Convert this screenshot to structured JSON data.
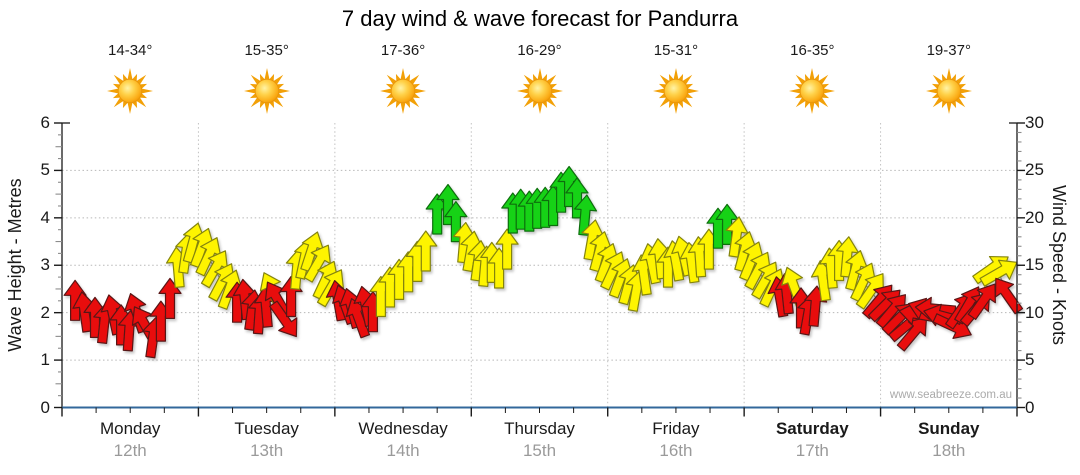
{
  "title": "7 day wind & wave forecast for Pandurra",
  "watermark": "www.seabreeze.com.au",
  "axes": {
    "left_title": "Wave Height - Metres",
    "right_title": "Wind Speed - Knots",
    "left_ticks": [
      "0",
      "1",
      "2",
      "3",
      "4",
      "5",
      "6"
    ],
    "right_ticks": [
      "0",
      "5",
      "10",
      "15",
      "20",
      "25",
      "30"
    ]
  },
  "days": [
    {
      "name": "Monday",
      "date": "12th",
      "temp": "14-34°",
      "icon": "sun-icon",
      "bold": false
    },
    {
      "name": "Tuesday",
      "date": "13th",
      "temp": "15-35°",
      "icon": "sun-icon",
      "bold": false
    },
    {
      "name": "Wednesday",
      "date": "14th",
      "temp": "17-36°",
      "icon": "sun-icon",
      "bold": false
    },
    {
      "name": "Thursday",
      "date": "15th",
      "temp": "16-29°",
      "icon": "sun-icon",
      "bold": false
    },
    {
      "name": "Friday",
      "date": "16th",
      "temp": "15-31°",
      "icon": "sun-icon",
      "bold": false
    },
    {
      "name": "Saturday",
      "date": "17th",
      "temp": "16-35°",
      "icon": "sun-icon",
      "bold": true
    },
    {
      "name": "Sunday",
      "date": "18th",
      "temp": "19-37°",
      "icon": "sun-icon",
      "bold": true
    }
  ],
  "chart_data": {
    "type": "scatter",
    "title": "7 day wind & wave forecast for Pandurra",
    "x_axis": {
      "days": [
        "Monday",
        "Tuesday",
        "Wednesday",
        "Thursday",
        "Friday",
        "Saturday",
        "Sunday"
      ],
      "dates": [
        "12th",
        "13th",
        "14th",
        "15th",
        "16th",
        "17th",
        "18th"
      ],
      "range_hours": [
        0,
        168
      ],
      "minor_ticks_per_day": 4
    },
    "y_left": {
      "label": "Wave Height - Metres",
      "range": [
        0,
        6
      ],
      "ticks": [
        0,
        1,
        2,
        3,
        4,
        5,
        6
      ],
      "grid": "dotted"
    },
    "y_right": {
      "label": "Wind Speed - Knots",
      "range": [
        0,
        30
      ],
      "ticks": [
        0,
        5,
        10,
        15,
        20,
        25,
        30
      ]
    },
    "wave_height_m": {
      "note": "flat line at zero across all 7 days",
      "value": 0
    },
    "wind_colors": {
      "r": "#e81010",
      "y": "#fef400",
      "g": "#16d215"
    },
    "wind_points_fields": [
      "hour",
      "knots",
      "direction_deg_cw_from_up",
      "color"
    ],
    "wind_points": [
      [
        2.3,
        11.2,
        0,
        "r"
      ],
      [
        4,
        10,
        -8,
        "r"
      ],
      [
        5.8,
        9.4,
        0,
        "r"
      ],
      [
        7.4,
        8.8,
        6,
        "r"
      ],
      [
        9,
        9.7,
        -12,
        "r"
      ],
      [
        10.4,
        8.6,
        0,
        "r"
      ],
      [
        11.8,
        8,
        4,
        "r"
      ],
      [
        13.2,
        9.9,
        -18,
        "r"
      ],
      [
        14.6,
        8.7,
        -30,
        "r"
      ],
      [
        16,
        7.3,
        8,
        "r"
      ],
      [
        17.4,
        9,
        0,
        "r"
      ],
      [
        19,
        11.4,
        0,
        "r"
      ],
      [
        20.4,
        14.7,
        -5,
        "y"
      ],
      [
        21.8,
        16.2,
        8,
        "y"
      ],
      [
        23,
        17.3,
        15,
        "y"
      ],
      [
        24.5,
        16.8,
        20,
        "y"
      ],
      [
        25.7,
        15.9,
        25,
        "y"
      ],
      [
        26.9,
        14.6,
        30,
        "y"
      ],
      [
        28.1,
        13.2,
        28,
        "y"
      ],
      [
        29.4,
        12.4,
        20,
        "y"
      ],
      [
        30.8,
        11,
        0,
        "r"
      ],
      [
        32.2,
        11.3,
        -6,
        "r"
      ],
      [
        33.4,
        10.2,
        8,
        "r"
      ],
      [
        34.7,
        9.8,
        4,
        "r"
      ],
      [
        35.9,
        10.5,
        -5,
        "r"
      ],
      [
        37.1,
        12.2,
        -25,
        "y"
      ],
      [
        38,
        11.3,
        -30,
        "r"
      ],
      [
        39.1,
        9.3,
        145,
        "r"
      ],
      [
        40.3,
        11.6,
        0,
        "r"
      ],
      [
        41.3,
        14.5,
        5,
        "y"
      ],
      [
        42.6,
        15.6,
        12,
        "y"
      ],
      [
        43.8,
        16.4,
        18,
        "y"
      ],
      [
        45,
        15.2,
        30,
        "y"
      ],
      [
        46.3,
        13.4,
        25,
        "y"
      ],
      [
        47.3,
        12.6,
        30,
        "y"
      ],
      [
        48.6,
        11.2,
        -10,
        "r"
      ],
      [
        49.8,
        10.8,
        -20,
        "r"
      ],
      [
        51,
        10.4,
        -15,
        "r"
      ],
      [
        52.2,
        9.4,
        -20,
        "r"
      ],
      [
        53.5,
        10.6,
        -12,
        "r"
      ],
      [
        54.7,
        10,
        0,
        "r"
      ],
      [
        56.1,
        11.6,
        0,
        "y"
      ],
      [
        57.7,
        12.6,
        0,
        "y"
      ],
      [
        59.3,
        13.4,
        0,
        "y"
      ],
      [
        60.9,
        14.2,
        0,
        "y"
      ],
      [
        62.5,
        15.3,
        0,
        "y"
      ],
      [
        64,
        16.4,
        0,
        "y"
      ],
      [
        66,
        20.3,
        0,
        "g"
      ],
      [
        67.9,
        21.3,
        0,
        "g"
      ],
      [
        69.3,
        19.5,
        0,
        "g"
      ],
      [
        70.7,
        17.3,
        5,
        "y"
      ],
      [
        71.9,
        16.4,
        10,
        "y"
      ],
      [
        73.2,
        15.4,
        8,
        "y"
      ],
      [
        74.4,
        14.8,
        5,
        "y"
      ],
      [
        75.6,
        15.2,
        0,
        "y"
      ],
      [
        76.9,
        14.6,
        0,
        "y"
      ],
      [
        78.3,
        16.6,
        0,
        "y"
      ],
      [
        79.3,
        20.4,
        0,
        "g"
      ],
      [
        80.7,
        20.8,
        0,
        "g"
      ],
      [
        82.2,
        20.6,
        0,
        "g"
      ],
      [
        83.6,
        20.9,
        0,
        "g"
      ],
      [
        85,
        21,
        0,
        "g"
      ],
      [
        86.4,
        21.2,
        0,
        "g"
      ],
      [
        87.8,
        22.6,
        0,
        "g"
      ],
      [
        89.2,
        23.2,
        0,
        "g"
      ],
      [
        90.6,
        22,
        0,
        "g"
      ],
      [
        92,
        20.2,
        5,
        "g"
      ],
      [
        93.2,
        17.6,
        10,
        "y"
      ],
      [
        94.5,
        16.4,
        15,
        "y"
      ],
      [
        95.7,
        15.2,
        20,
        "y"
      ],
      [
        96.9,
        14.4,
        25,
        "y"
      ],
      [
        98.2,
        13.6,
        20,
        "y"
      ],
      [
        99.6,
        12.9,
        15,
        "y"
      ],
      [
        101,
        12.2,
        10,
        "y"
      ],
      [
        102.4,
        13.9,
        -8,
        "y"
      ],
      [
        103.8,
        15.1,
        -12,
        "y"
      ],
      [
        105.2,
        15.6,
        -6,
        "y"
      ],
      [
        106.6,
        14.7,
        0,
        "y"
      ],
      [
        108,
        15.4,
        -10,
        "y"
      ],
      [
        109.4,
        15.9,
        -14,
        "y"
      ],
      [
        110.8,
        15.2,
        -8,
        "y"
      ],
      [
        112.2,
        15.8,
        -4,
        "y"
      ],
      [
        113.8,
        16.6,
        0,
        "y"
      ],
      [
        115.4,
        18.8,
        0,
        "g"
      ],
      [
        117,
        19.2,
        0,
        "g"
      ],
      [
        118.6,
        17.9,
        8,
        "y"
      ],
      [
        120,
        16.4,
        15,
        "y"
      ],
      [
        121.2,
        15.4,
        22,
        "y"
      ],
      [
        122.4,
        14.4,
        28,
        "y"
      ],
      [
        123.7,
        13.4,
        30,
        "y"
      ],
      [
        124.9,
        12.6,
        25,
        "y"
      ],
      [
        126.3,
        11.6,
        -10,
        "r"
      ],
      [
        127.5,
        11.9,
        -6,
        "r"
      ],
      [
        128.8,
        12.7,
        -20,
        "y"
      ],
      [
        130,
        10.4,
        0,
        "r"
      ],
      [
        131.2,
        9.7,
        10,
        "r"
      ],
      [
        132.5,
        10.6,
        5,
        "r"
      ],
      [
        133.9,
        13.3,
        -8,
        "y"
      ],
      [
        135.3,
        14.6,
        -5,
        "y"
      ],
      [
        136.7,
        15.4,
        0,
        "y"
      ],
      [
        138.1,
        15.8,
        5,
        "y"
      ],
      [
        139.5,
        14.4,
        15,
        "y"
      ],
      [
        140.9,
        13.2,
        25,
        "y"
      ],
      [
        142.3,
        12.3,
        35,
        "y"
      ],
      [
        143.6,
        11.2,
        40,
        "r"
      ],
      [
        144.8,
        10.8,
        45,
        "r"
      ],
      [
        146,
        10.2,
        40,
        "r"
      ],
      [
        147.2,
        9.4,
        45,
        "r"
      ],
      [
        148.5,
        8.6,
        50,
        "r"
      ],
      [
        149.7,
        7.8,
        40,
        "r"
      ],
      [
        150.9,
        9.8,
        -80,
        "r"
      ],
      [
        152.4,
        10.2,
        -70,
        "r"
      ],
      [
        153.8,
        10.4,
        -85,
        "r"
      ],
      [
        155.2,
        9.6,
        -75,
        "r"
      ],
      [
        156.6,
        8.6,
        115,
        "r"
      ],
      [
        158,
        10.2,
        35,
        "r"
      ],
      [
        159.4,
        10.8,
        30,
        "r"
      ],
      [
        160.8,
        10.4,
        40,
        "r"
      ],
      [
        162,
        11.2,
        35,
        "r"
      ],
      [
        163.4,
        14.6,
        55,
        "y"
      ],
      [
        164.8,
        14.2,
        60,
        "y"
      ],
      [
        166.4,
        11.8,
        -35,
        "r"
      ]
    ]
  }
}
